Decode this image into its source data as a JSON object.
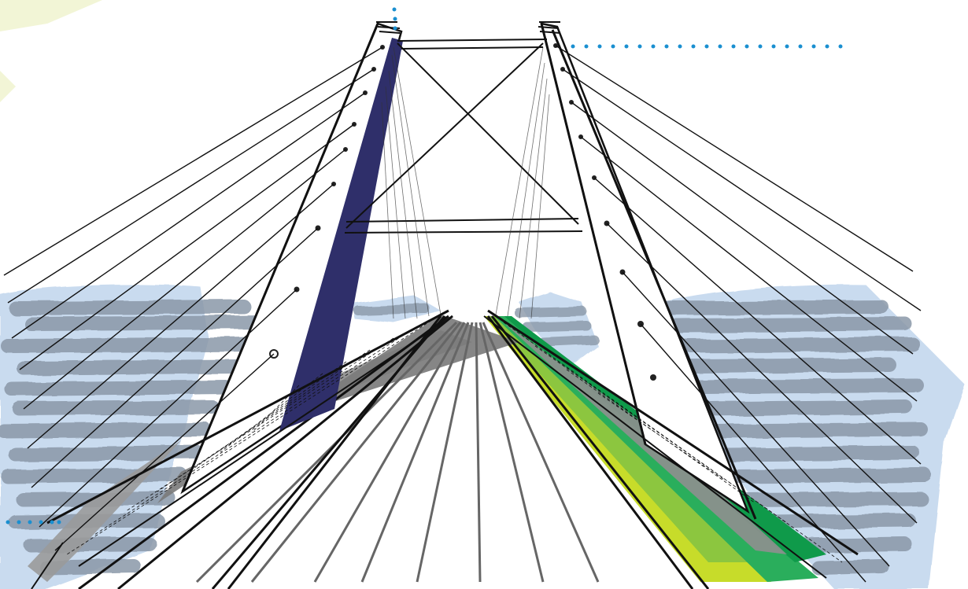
{
  "scene": {
    "subject": "cable-stayed-bridge-sketch",
    "palette": {
      "background": "#ffffff",
      "water_blue": "#c9dbef",
      "water_gray": "#8a98a8",
      "pylon_shadow": "#2f2f6a",
      "deck_gray": "#9a9a9a",
      "stroke": "#111111",
      "dots": "#1a8fd0",
      "lime": "#c7dc2a",
      "grass": "#8cc63f",
      "green": "#2aae5c",
      "dark_green": "#0f9a4a",
      "corner_tint": "#f2f5d6"
    }
  }
}
